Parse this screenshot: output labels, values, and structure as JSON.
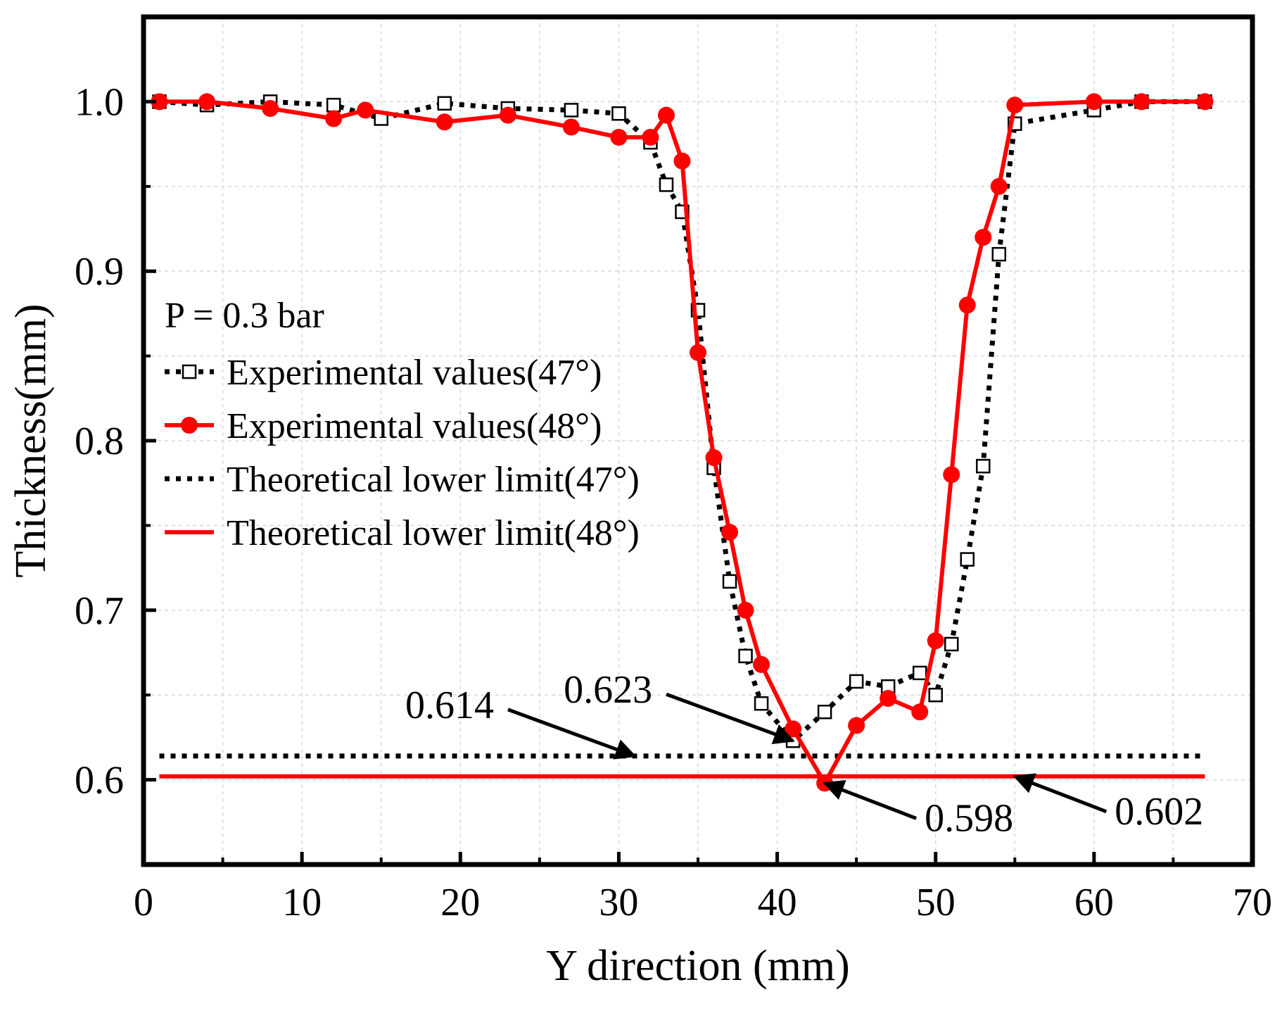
{
  "chart_data": {
    "type": "line",
    "xlabel": "Y direction (mm)",
    "ylabel": "Thickness(mm)",
    "xlim": [
      0,
      70
    ],
    "ylim": [
      0.55,
      1.05
    ],
    "xticks": [
      0,
      10,
      20,
      30,
      40,
      50,
      60,
      70
    ],
    "xtick_labels": [
      "0",
      "10",
      "20",
      "30",
      "40",
      "50",
      "60",
      "70"
    ],
    "yticks": [
      0.6,
      0.7,
      0.8,
      0.9,
      1.0
    ],
    "ytick_labels": [
      "0.6",
      "0.7",
      "0.8",
      "0.9",
      "1.0"
    ],
    "grid": true,
    "legend_header": "P = 0.3 bar",
    "legend_position": "center-left",
    "series": [
      {
        "name": "Experimental values(47°)",
        "style": "dotted-square",
        "color": "#000000",
        "x": [
          1,
          4,
          8,
          12,
          15,
          19,
          23,
          27,
          30,
          32,
          33,
          34,
          35,
          36,
          37,
          38,
          39,
          41,
          43,
          45,
          47,
          49,
          50,
          51,
          52,
          53,
          54,
          55,
          60,
          63,
          67
        ],
        "y": [
          1.0,
          0.998,
          1.0,
          0.998,
          0.99,
          0.999,
          0.996,
          0.995,
          0.993,
          0.976,
          0.951,
          0.935,
          0.877,
          0.784,
          0.717,
          0.673,
          0.645,
          0.623,
          0.64,
          0.658,
          0.655,
          0.663,
          0.65,
          0.68,
          0.73,
          0.785,
          0.91,
          0.987,
          0.995,
          1.0,
          1.0
        ]
      },
      {
        "name": "Experimental values(48°)",
        "style": "solid-circle",
        "color": "#ff0000",
        "x": [
          1,
          4,
          8,
          12,
          14,
          19,
          23,
          27,
          30,
          32,
          33,
          34,
          35,
          36,
          37,
          38,
          39,
          41,
          43,
          45,
          47,
          49,
          50,
          51,
          52,
          53,
          54,
          55,
          60,
          63,
          67
        ],
        "y": [
          1.0,
          1.0,
          0.996,
          0.99,
          0.995,
          0.988,
          0.992,
          0.985,
          0.979,
          0.979,
          0.992,
          0.965,
          0.852,
          0.79,
          0.746,
          0.7,
          0.668,
          0.63,
          0.598,
          0.632,
          0.648,
          0.64,
          0.682,
          0.78,
          0.88,
          0.92,
          0.95,
          0.998,
          1.0,
          1.0,
          1.0
        ]
      },
      {
        "name": "Theoretical lower limit(47°)",
        "style": "dotted",
        "color": "#000000",
        "x": [
          1,
          67
        ],
        "y": [
          0.614,
          0.614
        ]
      },
      {
        "name": "Theoretical lower limit(48°)",
        "style": "solid",
        "color": "#ff0000",
        "x": [
          1,
          67
        ],
        "y": [
          0.602,
          0.602
        ]
      }
    ],
    "annotations": [
      {
        "text": "0.614",
        "target_x": 31,
        "target_y": 0.614,
        "placement": "upper-left"
      },
      {
        "text": "0.623",
        "target_x": 41,
        "target_y": 0.623,
        "placement": "upper-left"
      },
      {
        "text": "0.598",
        "target_x": 43,
        "target_y": 0.598,
        "placement": "lower-right"
      },
      {
        "text": "0.602",
        "target_x": 55,
        "target_y": 0.602,
        "placement": "lower-right"
      }
    ]
  }
}
